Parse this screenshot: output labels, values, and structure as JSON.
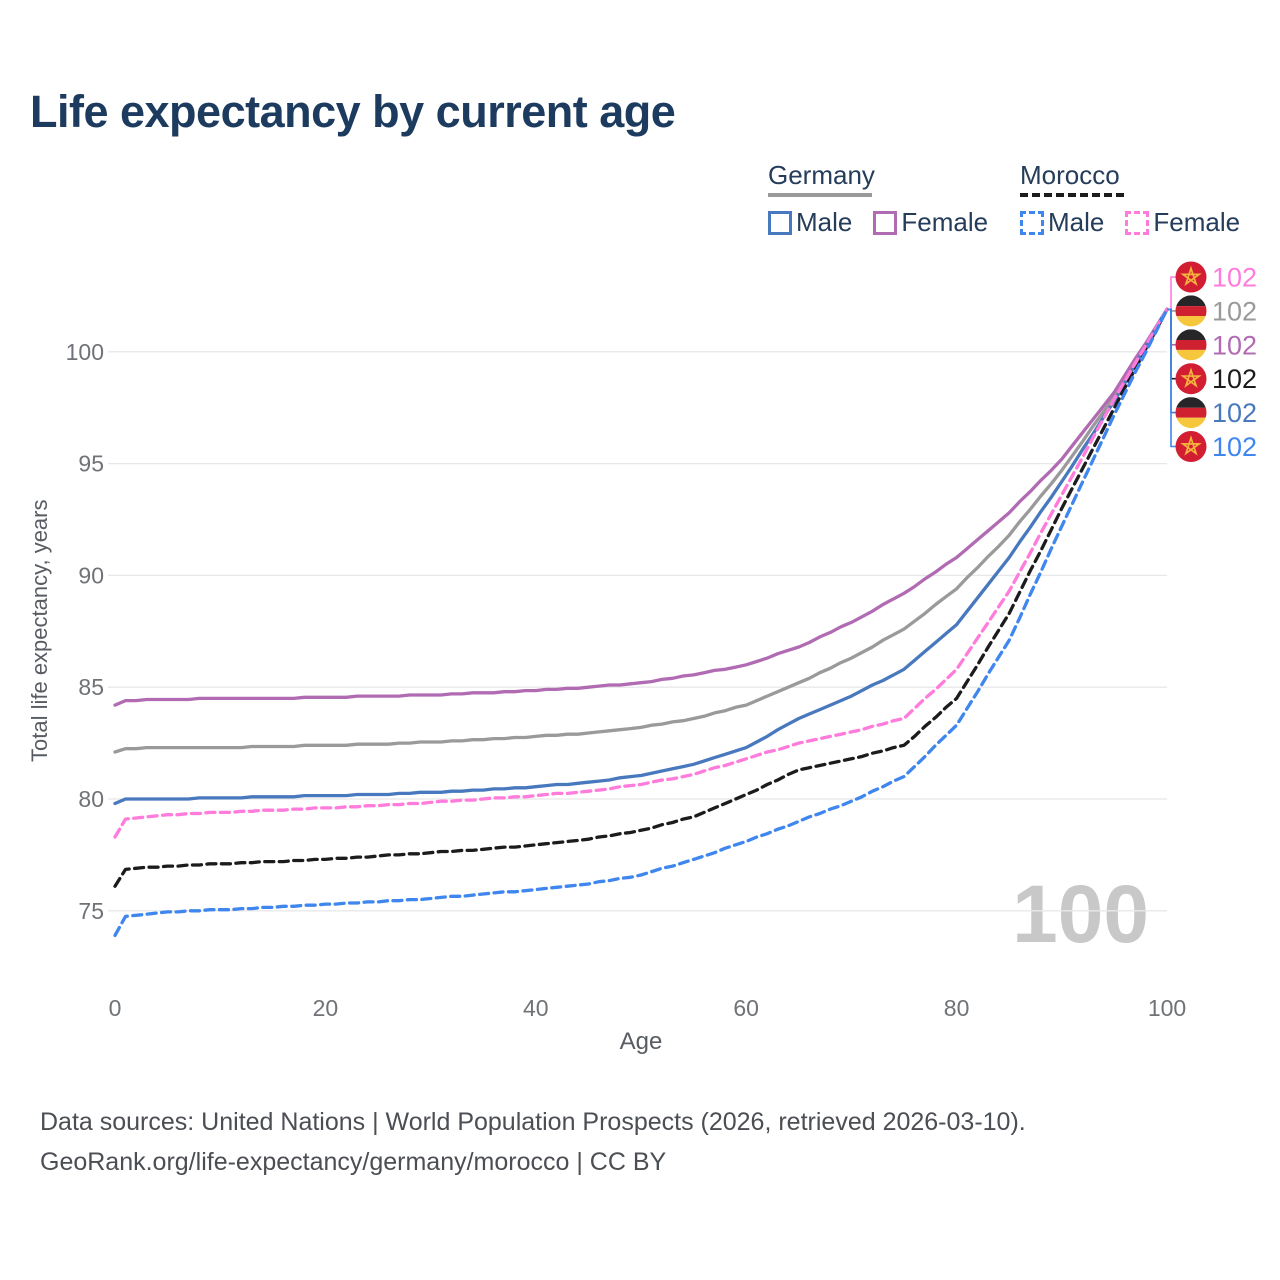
{
  "page": {
    "title": "Life expectancy by current age"
  },
  "legend": {
    "groups": [
      {
        "label": "Germany",
        "line_color": "#9a9a9a",
        "line_style": "solid",
        "items": [
          {
            "label": "Male",
            "color": "#4878bd",
            "dashed": false
          },
          {
            "label": "Female",
            "color": "#b16bb3",
            "dashed": false
          }
        ]
      },
      {
        "label": "Morocco",
        "line_color": "#1c1c1c",
        "line_style": "dashed",
        "items": [
          {
            "label": "Male",
            "color": "#3f86ee",
            "dashed": true
          },
          {
            "label": "Female",
            "color": "#ff7bdc",
            "dashed": true
          }
        ]
      }
    ]
  },
  "chart_data": {
    "type": "line",
    "title": "Life expectancy by current age",
    "xlabel": "Age",
    "ylabel": "Total life expectancy, years",
    "xlim": [
      0,
      100
    ],
    "ylim": [
      73,
      103
    ],
    "xticks": [
      0,
      20,
      40,
      60,
      80,
      100
    ],
    "yticks": [
      75,
      80,
      85,
      90,
      95,
      100
    ],
    "grid": "horizontal",
    "legend_position": "top-right",
    "watermark": "100",
    "x": [
      0,
      1,
      2,
      5,
      10,
      15,
      20,
      25,
      30,
      35,
      40,
      45,
      50,
      55,
      60,
      65,
      70,
      75,
      80,
      85,
      90,
      95,
      100
    ],
    "series": [
      {
        "name": "Germany Both sexes",
        "country": "Germany",
        "sex": "Both",
        "color": "#9a9a9a",
        "dashed": false,
        "values": [
          82.1,
          82.25,
          82.27,
          82.3,
          82.3,
          82.35,
          82.4,
          82.45,
          82.55,
          82.65,
          82.8,
          82.95,
          83.2,
          83.6,
          84.2,
          85.2,
          86.3,
          87.6,
          89.4,
          91.8,
          94.7,
          98.0,
          101.9
        ]
      },
      {
        "name": "Germany Female",
        "country": "Germany",
        "sex": "Female",
        "color": "#b16bb3",
        "dashed": false,
        "values": [
          84.2,
          84.4,
          84.42,
          84.45,
          84.5,
          84.5,
          84.55,
          84.6,
          84.65,
          84.75,
          84.85,
          85.0,
          85.2,
          85.55,
          86.0,
          86.8,
          87.9,
          89.2,
          90.8,
          92.8,
          95.2,
          98.2,
          101.9
        ]
      },
      {
        "name": "Germany Male",
        "country": "Germany",
        "sex": "Male",
        "color": "#4878bd",
        "dashed": false,
        "values": [
          79.8,
          80.0,
          80.0,
          80.0,
          80.05,
          80.1,
          80.15,
          80.2,
          80.3,
          80.4,
          80.55,
          80.75,
          81.05,
          81.55,
          82.3,
          83.6,
          84.6,
          85.8,
          87.8,
          90.8,
          94.2,
          97.8,
          101.9
        ]
      },
      {
        "name": "Morocco Both sexes",
        "country": "Morocco",
        "sex": "Both",
        "color": "#1c1c1c",
        "dashed": true,
        "values": [
          76.1,
          76.85,
          76.9,
          77.0,
          77.1,
          77.2,
          77.3,
          77.45,
          77.6,
          77.75,
          77.95,
          78.2,
          78.6,
          79.2,
          80.2,
          81.3,
          81.8,
          82.4,
          84.5,
          88.3,
          93.0,
          97.5,
          101.9
        ]
      },
      {
        "name": "Morocco Female",
        "country": "Morocco",
        "sex": "Female",
        "color": "#ff7bdc",
        "dashed": true,
        "values": [
          78.3,
          79.1,
          79.15,
          79.3,
          79.4,
          79.5,
          79.6,
          79.7,
          79.85,
          80.0,
          80.15,
          80.35,
          80.65,
          81.1,
          81.8,
          82.5,
          83.0,
          83.6,
          85.8,
          89.3,
          93.6,
          97.9,
          101.9
        ]
      },
      {
        "name": "Morocco Male",
        "country": "Morocco",
        "sex": "Male",
        "color": "#3f86ee",
        "dashed": true,
        "values": [
          73.9,
          74.75,
          74.8,
          74.95,
          75.05,
          75.15,
          75.3,
          75.4,
          75.55,
          75.75,
          75.95,
          76.2,
          76.6,
          77.3,
          78.1,
          79.0,
          79.9,
          81.0,
          83.3,
          87.1,
          92.2,
          97.2,
          101.9
        ]
      }
    ],
    "end_labels": [
      {
        "label": "102",
        "flag": "morocco",
        "color": "#ff7bdc",
        "series": "Morocco Female"
      },
      {
        "label": "102",
        "flag": "germany",
        "color": "#9a9a9a",
        "series": "Germany Both sexes"
      },
      {
        "label": "102",
        "flag": "germany",
        "color": "#b16bb3",
        "series": "Germany Female"
      },
      {
        "label": "102",
        "flag": "morocco",
        "color": "#1c1c1c",
        "series": "Morocco Both sexes"
      },
      {
        "label": "102",
        "flag": "germany",
        "color": "#4878bd",
        "series": "Germany Male"
      },
      {
        "label": "102",
        "flag": "morocco",
        "color": "#3f86ee",
        "series": "Morocco Male"
      }
    ],
    "flag_colors": {
      "germany_black": "#262629",
      "germany_red": "#cf2130",
      "germany_gold": "#f6c63c",
      "morocco_red": "#d21d33",
      "morocco_star": "#f3b33c"
    }
  },
  "footer": {
    "line1": "Data sources: United Nations | World Population Prospects (2026, retrieved 2026-03-10).",
    "line2": "GeoRank.org/life-expectancy/germany/morocco | CC BY"
  }
}
